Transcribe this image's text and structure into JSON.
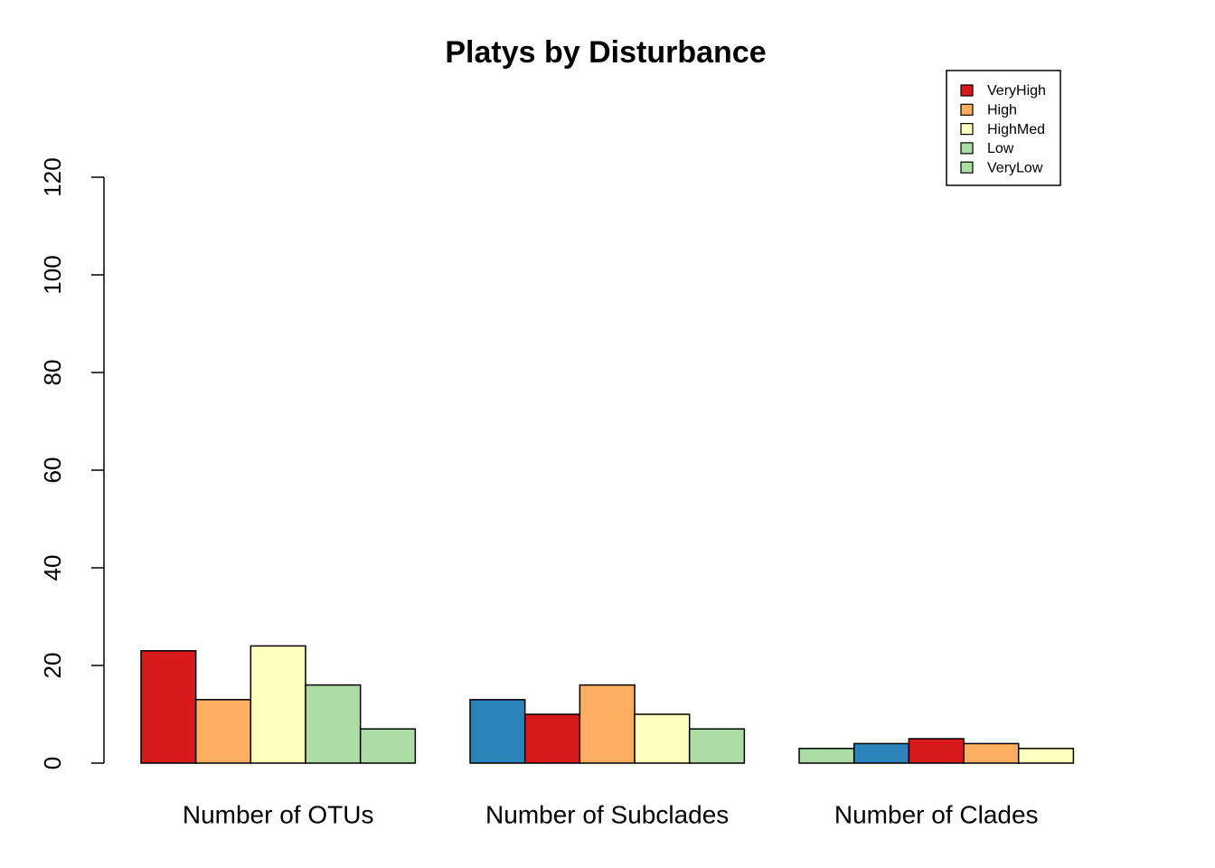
{
  "chart_data": {
    "type": "bar",
    "title": "Platys by Disturbance",
    "categories": [
      "Number of OTUs",
      "Number of Subclades",
      "Number of Clades"
    ],
    "series": [
      {
        "name": "VeryHigh",
        "color": "#d7191c",
        "values": [
          23,
          13,
          3
        ],
        "bar_colors": [
          "#d7191c",
          "#2b83ba",
          "#abdda4"
        ]
      },
      {
        "name": "High",
        "color": "#fdae61",
        "values": [
          13,
          10,
          4
        ],
        "bar_colors": [
          "#fdae61",
          "#d7191c",
          "#2b83ba"
        ]
      },
      {
        "name": "HighMed",
        "color": "#ffffbf",
        "values": [
          24,
          16,
          5
        ],
        "bar_colors": [
          "#ffffbf",
          "#fdae61",
          "#d7191c"
        ]
      },
      {
        "name": "Low",
        "color": "#abdda4",
        "values": [
          16,
          10,
          4
        ],
        "bar_colors": [
          "#abdda4",
          "#ffffbf",
          "#fdae61"
        ]
      },
      {
        "name": "VeryLow",
        "color": "#abdda4",
        "values": [
          7,
          7,
          3
        ],
        "bar_colors": [
          "#abdda4",
          "#abdda4",
          "#ffffbf"
        ]
      }
    ],
    "ylim": [
      0,
      120
    ],
    "yticks": [
      0,
      20,
      40,
      60,
      80,
      100,
      120
    ],
    "legend": "top-right"
  }
}
